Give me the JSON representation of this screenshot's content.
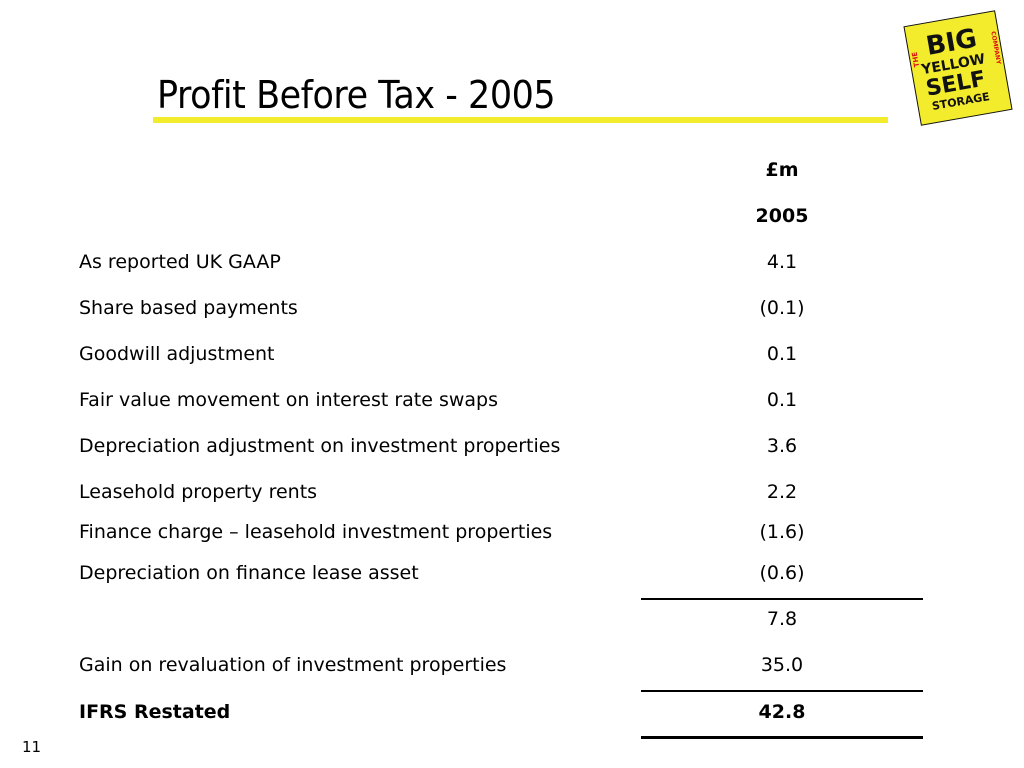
{
  "slide": {
    "title": "Profit Before Tax - 2005",
    "page_number": "11",
    "accent_color": "#f2ec2c"
  },
  "logo": {
    "line_the": "THE",
    "line_big": "BIG",
    "line_yellow": "YELLOW",
    "line_self": "SELF",
    "line_storage": "STORAGE",
    "line_company": "COMPANY",
    "background_color": "#f2ec2c"
  },
  "table": {
    "header_unit": "£m",
    "header_year": "2005",
    "rows": [
      {
        "label": "As reported UK GAAP",
        "value": "4.1"
      },
      {
        "label": "Share based payments",
        "value": "(0.1)"
      },
      {
        "label": "Goodwill adjustment",
        "value": "0.1"
      },
      {
        "label": "Fair value movement on interest rate swaps",
        "value": "0.1"
      },
      {
        "label": "Depreciation adjustment on investment properties",
        "value": "3.6"
      },
      {
        "label": "Leasehold property rents",
        "value": "2.2"
      },
      {
        "label": "Finance charge – leasehold investment properties",
        "value": "(1.6)"
      },
      {
        "label": "Depreciation on finance lease asset",
        "value": "(0.6)"
      }
    ],
    "subtotal": {
      "value": "7.8"
    },
    "revaluation": {
      "label": "Gain on revaluation of investment properties",
      "value": "35.0"
    },
    "total": {
      "label": "IFRS Restated",
      "value": "42.8"
    }
  }
}
